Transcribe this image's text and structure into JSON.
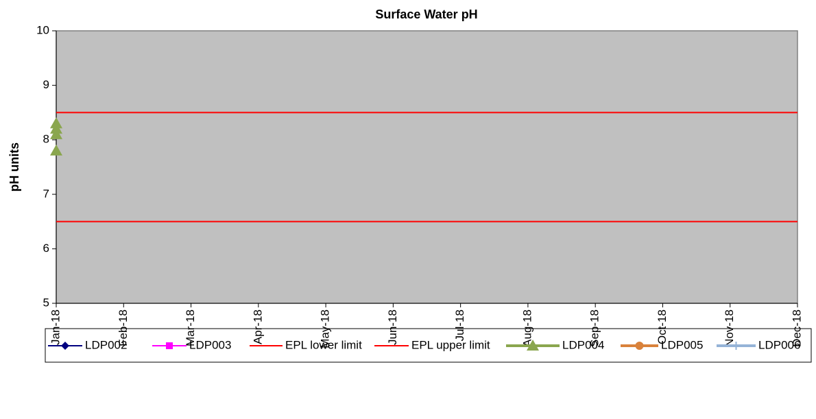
{
  "chart_data": {
    "type": "line",
    "title": "Surface Water pH",
    "y_label": "pH units",
    "categories": [
      "Jan-18",
      "Feb-18",
      "Mar-18",
      "Apr-18",
      "May-18",
      "Jun-18",
      "Jul-18",
      "Aug-18",
      "Sep-18",
      "Oct-18",
      "Nov-18",
      "Dec-18"
    ],
    "ylim": [
      5,
      10
    ],
    "yticks": [
      5,
      6,
      7,
      8,
      9,
      10
    ],
    "plot_background": "#c0c0c0",
    "series": [
      {
        "name": "LDP002",
        "color": "#000080",
        "marker": "diamond",
        "line_width": 2,
        "x": [],
        "values": []
      },
      {
        "name": "LDP003",
        "color": "#ff00ff",
        "marker": "square",
        "line_width": 2,
        "x": [],
        "values": []
      },
      {
        "name": "EPL lower limit",
        "color": "#ff0000",
        "marker": "none",
        "line_width": 2,
        "x": [
          "Jan-18",
          "Dec-18"
        ],
        "values": [
          6.5,
          6.5
        ]
      },
      {
        "name": "EPL upper limit",
        "color": "#ff0000",
        "marker": "none",
        "line_width": 2,
        "x": [
          "Jan-18",
          "Dec-18"
        ],
        "values": [
          8.5,
          8.5
        ]
      },
      {
        "name": "LDP004",
        "color": "#8aa64e",
        "marker": "triangle",
        "line_width": 4,
        "x": [
          "Jan-18",
          "Jan-18",
          "Jan-18",
          "Jan-18"
        ],
        "values": [
          8.3,
          8.2,
          8.1,
          7.8
        ]
      },
      {
        "name": "LDP005",
        "color": "#d9823b",
        "marker": "circle",
        "line_width": 4,
        "x": [],
        "values": []
      },
      {
        "name": "LDP006",
        "color": "#95b3d7",
        "marker": "plus",
        "line_width": 4,
        "x": [],
        "values": []
      }
    ]
  }
}
